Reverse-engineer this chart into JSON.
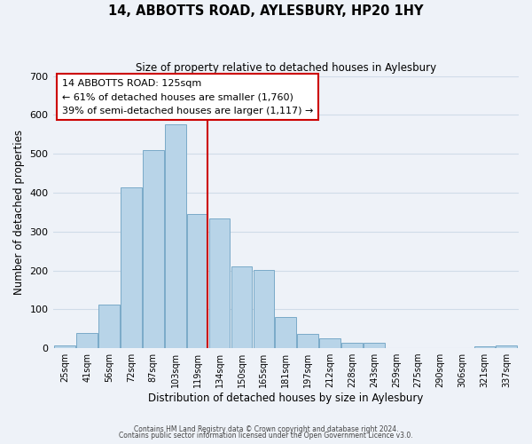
{
  "title": "14, ABBOTTS ROAD, AYLESBURY, HP20 1HY",
  "subtitle": "Size of property relative to detached houses in Aylesbury",
  "xlabel": "Distribution of detached houses by size in Aylesbury",
  "ylabel": "Number of detached properties",
  "bar_labels": [
    "25sqm",
    "41sqm",
    "56sqm",
    "72sqm",
    "87sqm",
    "103sqm",
    "119sqm",
    "134sqm",
    "150sqm",
    "165sqm",
    "181sqm",
    "197sqm",
    "212sqm",
    "228sqm",
    "243sqm",
    "259sqm",
    "275sqm",
    "290sqm",
    "306sqm",
    "321sqm",
    "337sqm"
  ],
  "bar_values": [
    8,
    38,
    113,
    414,
    509,
    575,
    345,
    333,
    211,
    201,
    80,
    37,
    26,
    13,
    13,
    0,
    0,
    0,
    0,
    5,
    8
  ],
  "bar_color": "#b8d4e8",
  "bar_edge_color": "#7aaac8",
  "grid_color": "#d0dce8",
  "background_color": "#eef2f8",
  "annotation_line1": "14 ABBOTTS ROAD: 125sqm",
  "annotation_line2": "← 61% of detached houses are smaller (1,760)",
  "annotation_line3": "39% of semi-detached houses are larger (1,117) →",
  "annotation_box_color": "#ffffff",
  "annotation_box_edge_color": "#cc0000",
  "vline_x_index": 6,
  "vline_color": "#cc0000",
  "ylim": [
    0,
    700
  ],
  "yticks": [
    0,
    100,
    200,
    300,
    400,
    500,
    600,
    700
  ],
  "footer_line1": "Contains HM Land Registry data © Crown copyright and database right 2024.",
  "footer_line2": "Contains public sector information licensed under the Open Government Licence v3.0."
}
